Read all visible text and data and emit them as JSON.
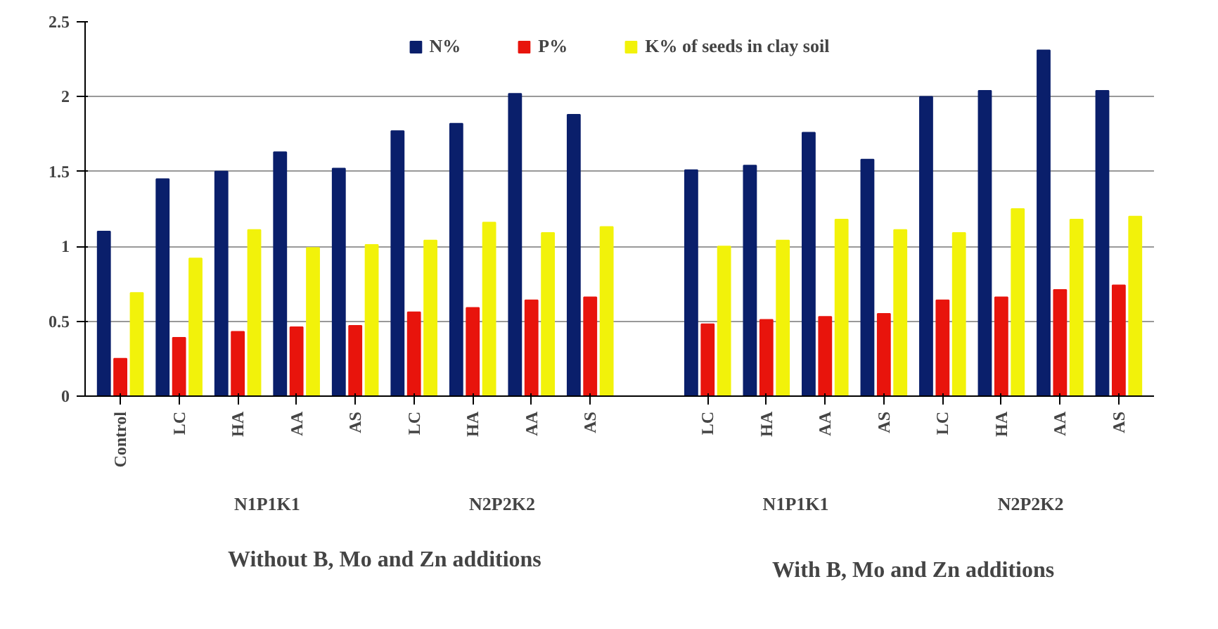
{
  "chart_data": {
    "type": "bar",
    "categories": [
      "Control",
      "LC",
      "HA",
      "AA",
      "AS",
      "LC",
      "HA",
      "AA",
      "AS",
      null,
      "LC",
      "HA",
      "AA",
      "AS",
      "LC",
      "HA",
      "AA",
      "AS"
    ],
    "series": [
      {
        "name": "N%",
        "color": "#0a1f6b",
        "values": [
          1.1,
          1.45,
          1.5,
          1.63,
          1.52,
          1.77,
          1.82,
          2.02,
          1.88,
          null,
          1.51,
          1.54,
          1.76,
          1.58,
          2.0,
          2.04,
          2.31,
          2.04
        ]
      },
      {
        "name": "P%",
        "color": "#e8140c",
        "values": [
          0.25,
          0.39,
          0.43,
          0.46,
          0.47,
          0.56,
          0.59,
          0.64,
          0.66,
          null,
          0.48,
          0.51,
          0.53,
          0.55,
          0.64,
          0.66,
          0.71,
          0.74
        ]
      },
      {
        "name": "K% of seeds in clay soil",
        "color": "#f2f20a",
        "values": [
          0.69,
          0.92,
          1.11,
          0.99,
          1.01,
          1.04,
          1.16,
          1.09,
          1.13,
          null,
          1.0,
          1.04,
          1.18,
          1.11,
          1.09,
          1.25,
          1.18,
          1.2
        ]
      }
    ],
    "ylim": [
      0,
      2.5
    ],
    "yticks": [
      0,
      0.5,
      1,
      1.5,
      2,
      2.5
    ],
    "grid": "y",
    "legend": "top",
    "annotations": [
      "N1P1K1",
      "N2P2K2",
      "N1P1K1",
      "N2P2K2",
      "Without B, Mo and Zn additions",
      "With B, Mo and Zn additions"
    ]
  }
}
